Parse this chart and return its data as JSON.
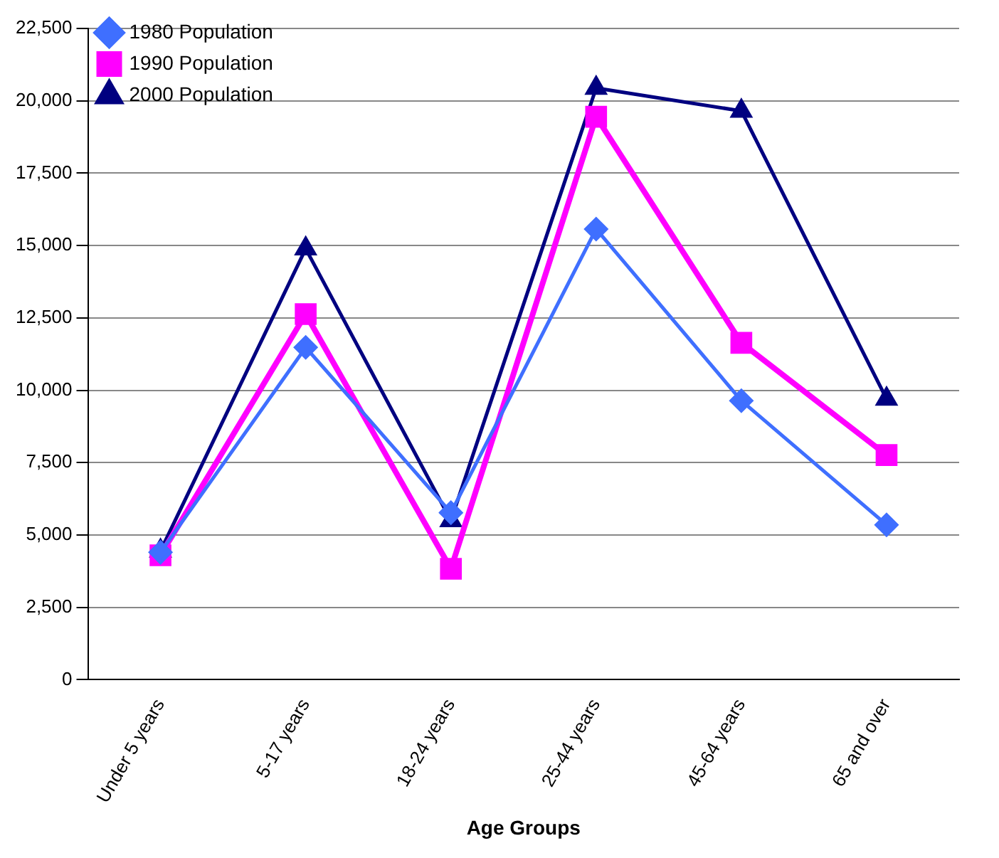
{
  "chart_data": {
    "type": "line",
    "xlabel": "Age Groups",
    "categories": [
      "Under 5 years",
      "5-17 years",
      "18-24 years",
      "25-44 years",
      "45-64 years",
      "65 and over"
    ],
    "series": [
      {
        "name": "1980 Population",
        "color": "#3f6fff",
        "marker": "diamond",
        "values": [
          4400,
          11480,
          5770,
          15570,
          9640,
          5350
        ]
      },
      {
        "name": "1990 Population",
        "color": "#ff00ff",
        "marker": "square",
        "values": [
          4300,
          12630,
          3830,
          19450,
          11640,
          7760
        ]
      },
      {
        "name": "2000 Population",
        "color": "#000080",
        "marker": "triangle",
        "values": [
          4450,
          14890,
          5500,
          20440,
          19650,
          9700
        ]
      }
    ],
    "ylim": [
      0,
      22500
    ],
    "yticks": [
      0,
      {
        "value": 2500,
        "label": "2,500"
      },
      {
        "value": 5000,
        "label": "5,000"
      },
      {
        "value": 7500,
        "label": "7,500"
      },
      {
        "value": 10000,
        "label": "10,000"
      },
      {
        "value": 12500,
        "label": "12,500"
      },
      {
        "value": 15000,
        "label": "15,000"
      },
      {
        "value": 17500,
        "label": "17,500"
      },
      {
        "value": 20000,
        "label": "20,000"
      },
      {
        "value": 22500,
        "label": "22,500"
      }
    ],
    "grid": "y",
    "legend": "top left",
    "line_style": "solid"
  }
}
